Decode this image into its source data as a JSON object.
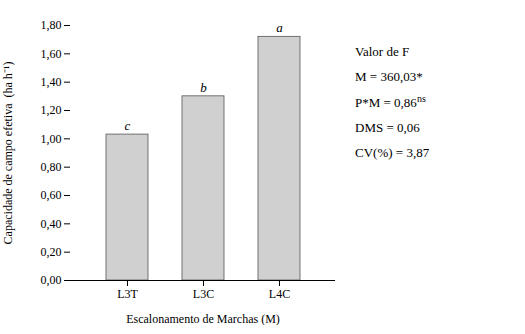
{
  "chart_data": {
    "type": "bar",
    "categories": [
      "L3T",
      "L3C",
      "L4C"
    ],
    "values": [
      1.03,
      1.3,
      1.72
    ],
    "color": "#d0d0d0",
    "bar_labels": [
      "c",
      "b",
      "a"
    ],
    "xlabel": "Escalonamento de Marchas (M)",
    "ylabel": "Capacidade de campo efetiva  (ha h⁻¹)",
    "ylim": [
      0.0,
      1.8
    ],
    "yticks": [
      {
        "value": 0.0,
        "label": "0,00"
      },
      {
        "value": 0.2,
        "label": "0,20"
      },
      {
        "value": 0.4,
        "label": "0,40"
      },
      {
        "value": 0.6,
        "label": "0,60"
      },
      {
        "value": 0.8,
        "label": "0,80"
      },
      {
        "value": 1.0,
        "label": "1,00"
      },
      {
        "value": 1.2,
        "label": "1,20"
      },
      {
        "value": 1.4,
        "label": "1,40"
      },
      {
        "value": 1.6,
        "label": "1,60"
      },
      {
        "value": 1.8,
        "label": "1,80"
      }
    ],
    "annotations": [
      {
        "text": "Valor de F"
      },
      {
        "text": "M = 360,03*"
      },
      {
        "text": "P*M = 0,86",
        "sup": "ns"
      },
      {
        "text": "DMS = 0,06"
      },
      {
        "text": "CV(%) = 3,87"
      }
    ],
    "grid": false
  }
}
